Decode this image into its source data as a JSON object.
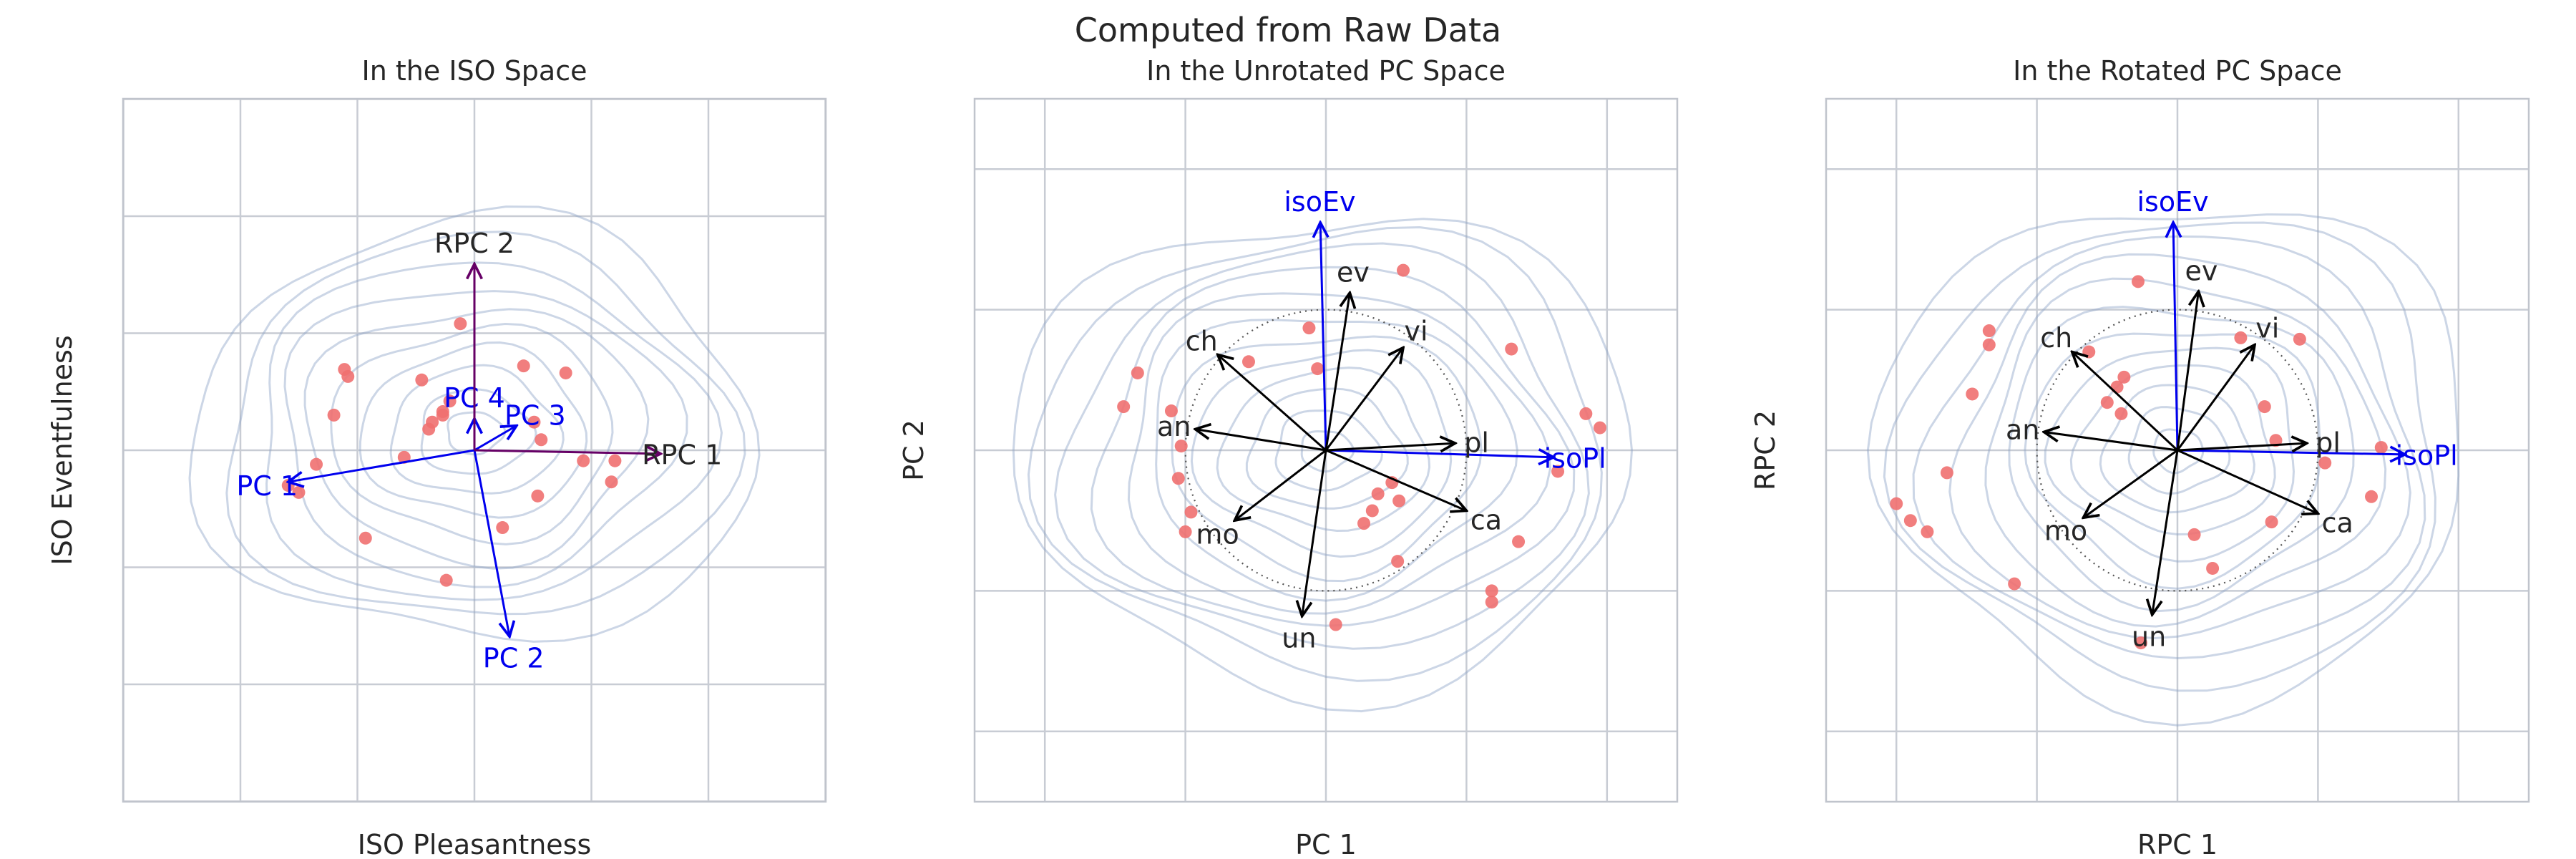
{
  "figure": {
    "title": "Computed from Raw Data"
  },
  "colors": {
    "grid": "#c8ccd4",
    "frame": "#c0c4cc",
    "contour": "#8fa4c8",
    "points": "#f07070",
    "text": "#262626",
    "blue": "#0000ee",
    "purple": "#660066",
    "black": "#000000"
  },
  "chart_data": [
    {
      "type": "scatter",
      "title": "In the ISO Space",
      "xlabel": "ISO Pleasantness",
      "ylabel": "ISO Eventfulness",
      "xlim": [
        -1,
        1
      ],
      "ylim": [
        -1,
        1
      ],
      "grid": true,
      "points": [
        [
          -0.53,
          -0.1
        ],
        [
          -0.5,
          -0.12
        ],
        [
          -0.45,
          -0.04
        ],
        [
          -0.4,
          0.1
        ],
        [
          -0.37,
          0.23
        ],
        [
          -0.36,
          0.21
        ],
        [
          -0.31,
          -0.25
        ],
        [
          -0.2,
          -0.02
        ],
        [
          -0.15,
          0.2
        ],
        [
          -0.13,
          0.06
        ],
        [
          -0.12,
          0.08
        ],
        [
          -0.09,
          0.1
        ],
        [
          -0.07,
          0.14
        ],
        [
          -0.09,
          0.11
        ],
        [
          -0.08,
          -0.37
        ],
        [
          -0.04,
          0.36
        ],
        [
          0.08,
          -0.22
        ],
        [
          0.14,
          0.24
        ],
        [
          0.17,
          0.08
        ],
        [
          0.19,
          0.03
        ],
        [
          0.18,
          -0.13
        ],
        [
          0.26,
          0.22
        ],
        [
          0.31,
          -0.03
        ],
        [
          0.39,
          -0.09
        ],
        [
          0.4,
          -0.03
        ]
      ],
      "arrows": [
        {
          "label": "PC 1",
          "x": -0.53,
          "y": -0.09,
          "color": "blue"
        },
        {
          "label": "PC 2",
          "x": 0.1,
          "y": -0.53,
          "color": "blue"
        },
        {
          "label": "PC 3",
          "x": 0.12,
          "y": 0.07,
          "color": "blue"
        },
        {
          "label": "PC 4",
          "x": 0.0,
          "y": 0.09,
          "color": "blue"
        },
        {
          "label": "RPC 1",
          "x": 0.53,
          "y": -0.01,
          "color": "purple"
        },
        {
          "label": "RPC 2",
          "x": 0.0,
          "y": 0.53,
          "color": "purple"
        }
      ],
      "contours": {
        "levels": 10,
        "center": [
          0.0,
          0.05
        ],
        "rx": 0.8,
        "ry": 0.6
      }
    },
    {
      "type": "scatter",
      "title": "In the Unrotated PC Space",
      "xlabel": "PC 1",
      "ylabel": "PC 2",
      "xlim": [
        -2.5,
        2.5
      ],
      "ylim": [
        -2.5,
        2.5
      ],
      "grid": true,
      "points": [
        [
          -1.34,
          0.55
        ],
        [
          -1.44,
          0.31
        ],
        [
          -1.1,
          0.28
        ],
        [
          -1.03,
          0.03
        ],
        [
          -1.05,
          -0.2
        ],
        [
          -1.0,
          -0.58
        ],
        [
          -0.96,
          -0.44
        ],
        [
          -0.55,
          0.63
        ],
        [
          -0.12,
          0.87
        ],
        [
          -0.06,
          0.58
        ],
        [
          0.07,
          -1.24
        ],
        [
          0.27,
          -0.52
        ],
        [
          0.33,
          -0.43
        ],
        [
          0.37,
          -0.31
        ],
        [
          0.47,
          -0.23
        ],
        [
          0.52,
          -0.36
        ],
        [
          0.51,
          -0.79
        ],
        [
          0.55,
          1.28
        ],
        [
          1.32,
          0.72
        ],
        [
          1.37,
          -0.65
        ],
        [
          1.18,
          -1.0
        ],
        [
          1.18,
          -1.08
        ],
        [
          1.65,
          -0.15
        ],
        [
          1.85,
          0.26
        ],
        [
          1.95,
          0.16
        ]
      ],
      "arrows": [
        {
          "label": "isoPl",
          "x": 1.62,
          "y": -0.05,
          "color": "blue"
        },
        {
          "label": "isoEv",
          "x": -0.04,
          "y": 1.62,
          "color": "blue"
        },
        {
          "label": "ev",
          "x": 0.17,
          "y": 1.12,
          "color": "black"
        },
        {
          "label": "vi",
          "x": 0.55,
          "y": 0.73,
          "color": "black"
        },
        {
          "label": "pl",
          "x": 0.92,
          "y": 0.05,
          "color": "black"
        },
        {
          "label": "ca",
          "x": 1.0,
          "y": -0.43,
          "color": "black"
        },
        {
          "label": "un",
          "x": -0.17,
          "y": -1.18,
          "color": "black"
        },
        {
          "label": "mo",
          "x": -0.65,
          "y": -0.5,
          "color": "black"
        },
        {
          "label": "an",
          "x": -0.93,
          "y": 0.15,
          "color": "black"
        },
        {
          "label": "ch",
          "x": -0.77,
          "y": 0.68,
          "color": "black"
        }
      ],
      "unit_circle_radius": 1.0,
      "contours": {
        "levels": 12,
        "center": [
          0.0,
          0.0
        ],
        "rx": 2.2,
        "ry": 1.7
      }
    },
    {
      "type": "scatter",
      "title": "In the Rotated PC Space",
      "xlabel": "RPC 1",
      "ylabel": "RPC 2",
      "xlim": [
        -2.5,
        2.5
      ],
      "ylim": [
        -2.5,
        2.5
      ],
      "grid": true,
      "points": [
        [
          -2.0,
          -0.38
        ],
        [
          -1.9,
          -0.5
        ],
        [
          -1.78,
          -0.58
        ],
        [
          -1.64,
          -0.16
        ],
        [
          -1.46,
          0.4
        ],
        [
          -1.34,
          0.85
        ],
        [
          -1.34,
          0.75
        ],
        [
          -1.16,
          -0.95
        ],
        [
          -0.63,
          0.7
        ],
        [
          -0.5,
          0.34
        ],
        [
          -0.43,
          0.45
        ],
        [
          -0.38,
          0.52
        ],
        [
          -0.4,
          0.26
        ],
        [
          -0.26,
          -1.37
        ],
        [
          -0.28,
          1.2
        ],
        [
          0.12,
          -0.6
        ],
        [
          0.25,
          -0.84
        ],
        [
          0.45,
          0.8
        ],
        [
          0.62,
          0.31
        ],
        [
          0.7,
          0.07
        ],
        [
          0.67,
          -0.51
        ],
        [
          0.87,
          0.79
        ],
        [
          1.05,
          -0.09
        ],
        [
          1.38,
          -0.33
        ],
        [
          1.45,
          0.02
        ]
      ],
      "arrows": [
        {
          "label": "isoPl",
          "x": 1.62,
          "y": -0.03,
          "color": "blue"
        },
        {
          "label": "isoEv",
          "x": -0.03,
          "y": 1.62,
          "color": "blue"
        },
        {
          "label": "ev",
          "x": 0.15,
          "y": 1.13,
          "color": "black"
        },
        {
          "label": "vi",
          "x": 0.55,
          "y": 0.75,
          "color": "black"
        },
        {
          "label": "pl",
          "x": 0.92,
          "y": 0.05,
          "color": "black"
        },
        {
          "label": "ca",
          "x": 1.0,
          "y": -0.45,
          "color": "black"
        },
        {
          "label": "un",
          "x": -0.18,
          "y": -1.17,
          "color": "black"
        },
        {
          "label": "mo",
          "x": -0.67,
          "y": -0.48,
          "color": "black"
        },
        {
          "label": "an",
          "x": -0.95,
          "y": 0.13,
          "color": "black"
        },
        {
          "label": "ch",
          "x": -0.75,
          "y": 0.7,
          "color": "black"
        }
      ],
      "unit_circle_radius": 1.0,
      "contours": {
        "levels": 12,
        "center": [
          0.0,
          0.0
        ],
        "rx": 2.1,
        "ry": 1.8
      }
    }
  ]
}
